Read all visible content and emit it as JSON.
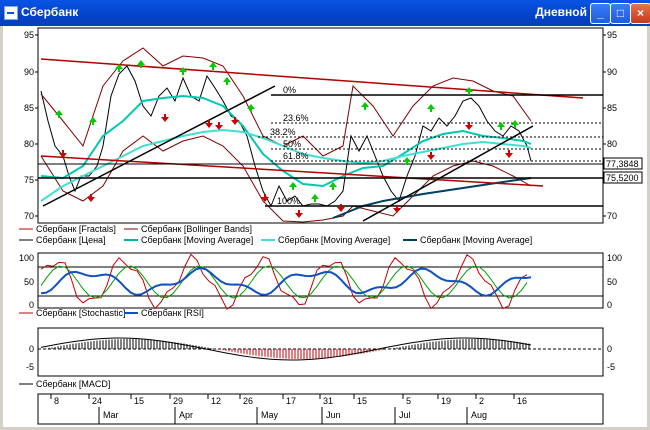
{
  "window": {
    "title": "Сбербанк",
    "period": "Дневной",
    "minimize": "_",
    "maximize": "□",
    "close": "×"
  },
  "price_pane": {
    "y_ticks": [
      "95",
      "90",
      "85",
      "80",
      "75",
      "70"
    ],
    "levels": [
      {
        "label": "0%"
      },
      {
        "label": "23.6%"
      },
      {
        "label": "38.2%"
      },
      {
        "label": "50%"
      },
      {
        "label": "61.8%"
      },
      {
        "label": "100%"
      }
    ],
    "value_labels": [
      "77,3848",
      "75,5200"
    ],
    "legend": [
      {
        "text": "Сбербанк [Fractals]",
        "color": "#c00000"
      },
      {
        "text": "Сбербанк [Bollinger Bands]",
        "color": "#800000"
      },
      {
        "text": "Сбербанк [Цена]",
        "color": "#000000"
      },
      {
        "text": "Сбербанк [Moving Average]",
        "color": "#00b8a0"
      },
      {
        "text": "Сбербанк [Moving Average]",
        "color": "#40e0d0"
      },
      {
        "text": "Сбербанк [Moving Average]",
        "color": "#004060"
      }
    ]
  },
  "osc_pane": {
    "y_ticks": [
      "100",
      "50",
      "0"
    ],
    "legend": [
      {
        "text": "Сбербанк [Stochastic]",
        "color": "#c00000"
      },
      {
        "text": "Сбербанк [RSI]",
        "color": "#1050c0"
      }
    ]
  },
  "macd_pane": {
    "y_ticks": [
      "0",
      "-5"
    ],
    "legend": [
      {
        "text": "Сбербанк [MACD]",
        "color": "#000000"
      }
    ]
  },
  "time_axis": {
    "days": [
      "8",
      "24",
      "15",
      "29",
      "12",
      "26",
      "17",
      "31",
      "15",
      "5",
      "19",
      "2",
      "16"
    ],
    "months": [
      "Mar",
      "Apr",
      "May",
      "Jun",
      "Jul",
      "Aug"
    ]
  },
  "colors": {
    "up": "#00cc00",
    "down": "#cc0000",
    "trend": "#000000",
    "resist": "#b00000"
  }
}
